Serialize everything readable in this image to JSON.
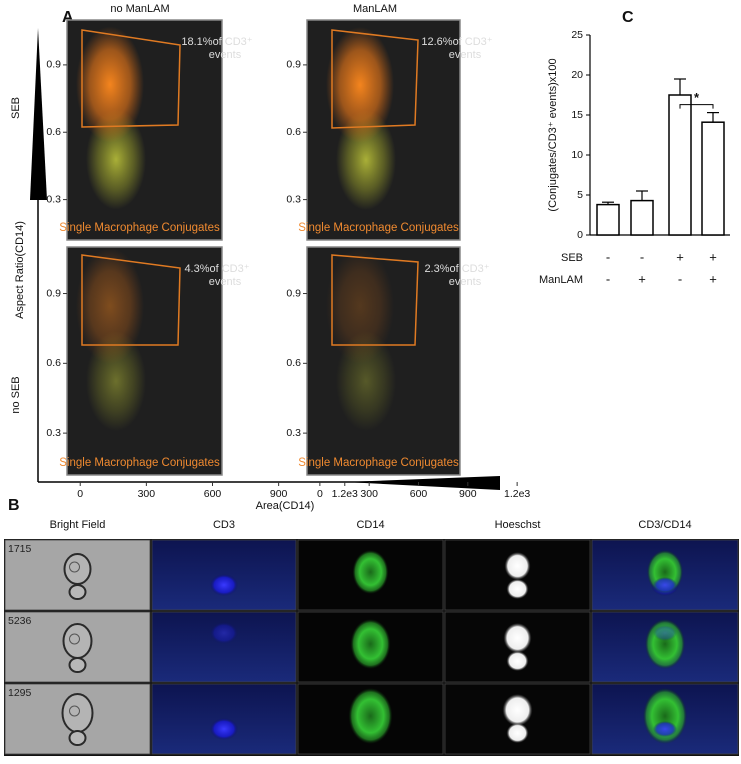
{
  "panel_labels": {
    "a": "A",
    "b": "B",
    "c": "C"
  },
  "panel_a": {
    "column_titles": [
      "no ManLAM",
      "ManLAM"
    ],
    "row_labels": [
      "SEB",
      "no SEB"
    ],
    "y_label": "Aspect Ratio(CD14)",
    "x_label": "Area(CD14)"
  },
  "chart_data": [
    {
      "type": "scatter",
      "ylim": [
        0.12,
        1.1
      ],
      "yticks": [
        0.3,
        0.6,
        0.9
      ],
      "gate_label": "Single Macrophage Conjugates",
      "annotation": [
        "18.1%of CD3⁺",
        "events"
      ]
    },
    {
      "type": "scatter",
      "ylim": [
        0.12,
        1.1
      ],
      "yticks": [
        0.3,
        0.6,
        0.9
      ],
      "gate_label": "Single Macrophage Conjugates",
      "annotation": [
        "12.6%of CD3⁺",
        "events"
      ]
    },
    {
      "type": "scatter",
      "ylim": [
        0.12,
        1.1
      ],
      "yticks": [
        0.3,
        0.6,
        0.9
      ],
      "xlim": [
        -60,
        1260
      ],
      "xticks": [
        0,
        300,
        600,
        900,
        {
          "value": 1200,
          "label": "1.2e3"
        }
      ],
      "gate_label": "Single Macrophage Conjugates",
      "annotation": [
        "4.3%of CD3⁺",
        "events"
      ]
    },
    {
      "type": "scatter",
      "ylim": [
        0.12,
        1.1
      ],
      "yticks": [
        0.3,
        0.6,
        0.9
      ],
      "xlim": [
        -60,
        1260
      ],
      "xticks": [
        0,
        300,
        600,
        900,
        {
          "value": 1200,
          "label": "1.2e3"
        }
      ],
      "gate_label": "Single Macrophage Conjugates",
      "annotation": [
        "2.3%of CD3⁺",
        "events"
      ]
    },
    {
      "type": "bar",
      "y_label": "(Conjugates/CD3⁺ events)x100",
      "ylim": [
        0,
        25
      ],
      "yticks": [
        0,
        5,
        10,
        15,
        20,
        25
      ],
      "values": [
        3.8,
        4.3,
        17.5,
        14.1
      ],
      "errors": [
        0.3,
        1.2,
        2.0,
        1.2
      ],
      "color": "#ffffff",
      "conditions": [
        {
          "name": "SEB",
          "values": [
            "-",
            "-",
            "+",
            "+"
          ]
        },
        {
          "name": "ManLAM",
          "values": [
            "-",
            "+",
            "-",
            "+"
          ]
        }
      ],
      "significance": "*"
    }
  ],
  "panel_b": {
    "column_titles": [
      "Bright Field",
      "CD3",
      "CD14",
      "Hoeschst",
      "CD3/CD14"
    ],
    "event_ids": [
      "1715",
      "5236",
      "1295"
    ]
  }
}
